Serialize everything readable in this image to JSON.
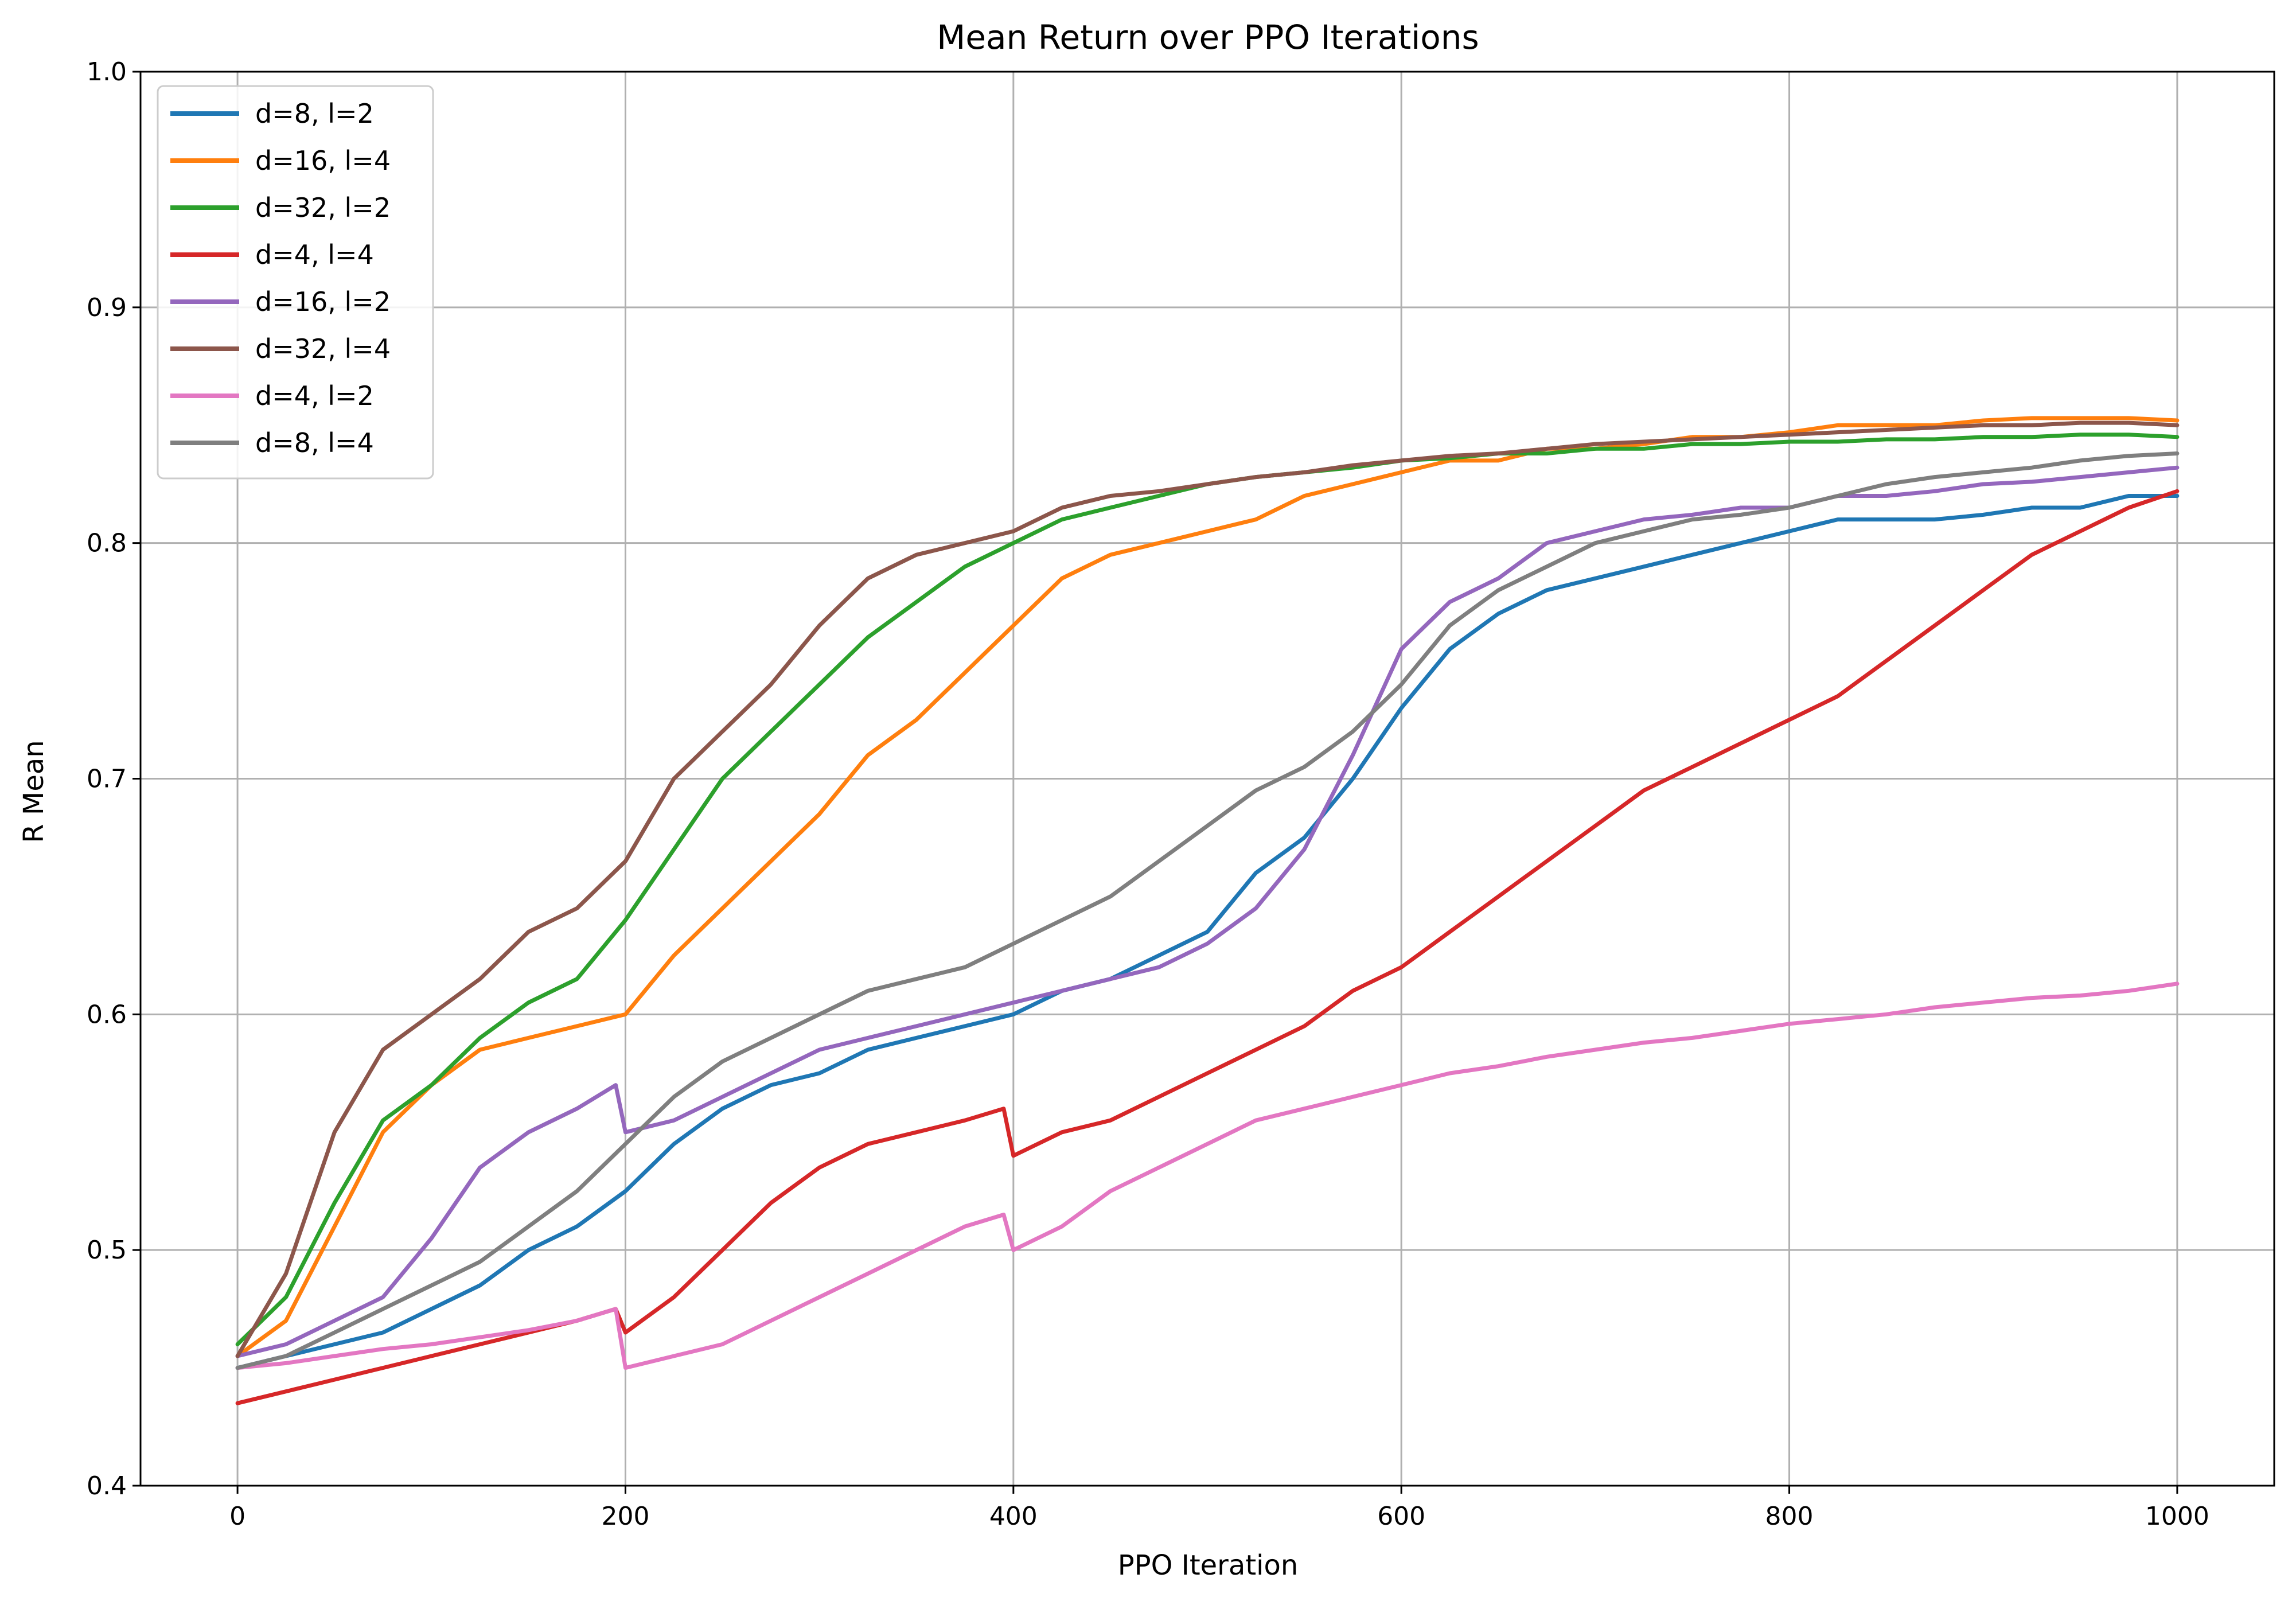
{
  "chart_data": {
    "type": "line",
    "title": "Mean Return over PPO Iterations",
    "xlabel": "PPO Iteration",
    "ylabel": "R Mean",
    "xlim": [
      -50,
      1050
    ],
    "ylim": [
      0.4,
      1.0
    ],
    "xticks": [
      0,
      200,
      400,
      600,
      800,
      1000
    ],
    "yticks": [
      0.4,
      0.5,
      0.6,
      0.7,
      0.8,
      0.9,
      1.0
    ],
    "grid": true,
    "legend_position": "top-left",
    "series": [
      {
        "name": "d=8, l=2",
        "color": "#1f77b4",
        "x": [
          0,
          25,
          50,
          75,
          100,
          125,
          150,
          175,
          200,
          225,
          250,
          275,
          300,
          325,
          350,
          375,
          400,
          425,
          450,
          475,
          500,
          525,
          550,
          575,
          600,
          625,
          650,
          675,
          700,
          725,
          750,
          775,
          800,
          825,
          850,
          875,
          900,
          925,
          950,
          975,
          1000
        ],
        "y": [
          0.45,
          0.455,
          0.46,
          0.465,
          0.475,
          0.485,
          0.5,
          0.51,
          0.525,
          0.545,
          0.56,
          0.57,
          0.575,
          0.585,
          0.59,
          0.595,
          0.6,
          0.61,
          0.615,
          0.625,
          0.635,
          0.66,
          0.675,
          0.7,
          0.73,
          0.755,
          0.77,
          0.78,
          0.785,
          0.79,
          0.795,
          0.8,
          0.805,
          0.81,
          0.81,
          0.81,
          0.812,
          0.815,
          0.815,
          0.82,
          0.82
        ]
      },
      {
        "name": "d=16, l=4",
        "color": "#ff7f0e",
        "x": [
          0,
          25,
          50,
          75,
          100,
          125,
          150,
          175,
          200,
          225,
          250,
          275,
          300,
          325,
          350,
          375,
          400,
          425,
          450,
          475,
          500,
          525,
          550,
          575,
          600,
          625,
          650,
          675,
          700,
          725,
          750,
          775,
          800,
          825,
          850,
          875,
          900,
          925,
          950,
          975,
          1000
        ],
        "y": [
          0.455,
          0.47,
          0.51,
          0.55,
          0.57,
          0.585,
          0.59,
          0.595,
          0.6,
          0.625,
          0.645,
          0.665,
          0.685,
          0.71,
          0.725,
          0.745,
          0.765,
          0.785,
          0.795,
          0.8,
          0.805,
          0.81,
          0.82,
          0.825,
          0.83,
          0.835,
          0.835,
          0.84,
          0.84,
          0.842,
          0.845,
          0.845,
          0.847,
          0.85,
          0.85,
          0.85,
          0.852,
          0.853,
          0.853,
          0.853,
          0.852
        ]
      },
      {
        "name": "d=32, l=2",
        "color": "#2ca02c",
        "x": [
          0,
          25,
          50,
          75,
          100,
          125,
          150,
          175,
          200,
          225,
          250,
          275,
          300,
          325,
          350,
          375,
          400,
          425,
          450,
          475,
          500,
          525,
          550,
          575,
          600,
          625,
          650,
          675,
          700,
          725,
          750,
          775,
          800,
          825,
          850,
          875,
          900,
          925,
          950,
          975,
          1000
        ],
        "y": [
          0.46,
          0.48,
          0.52,
          0.555,
          0.57,
          0.59,
          0.605,
          0.615,
          0.64,
          0.67,
          0.7,
          0.72,
          0.74,
          0.76,
          0.775,
          0.79,
          0.8,
          0.81,
          0.815,
          0.82,
          0.825,
          0.828,
          0.83,
          0.832,
          0.835,
          0.836,
          0.838,
          0.838,
          0.84,
          0.84,
          0.842,
          0.842,
          0.843,
          0.843,
          0.844,
          0.844,
          0.845,
          0.845,
          0.846,
          0.846,
          0.845
        ]
      },
      {
        "name": "d=4, l=4",
        "color": "#d62728",
        "x": [
          0,
          25,
          50,
          75,
          100,
          125,
          150,
          175,
          195,
          200,
          225,
          250,
          275,
          300,
          325,
          350,
          375,
          395,
          400,
          425,
          450,
          475,
          500,
          525,
          550,
          575,
          600,
          625,
          650,
          675,
          700,
          725,
          750,
          775,
          800,
          825,
          850,
          875,
          900,
          925,
          950,
          975,
          1000
        ],
        "y": [
          0.435,
          0.44,
          0.445,
          0.45,
          0.455,
          0.46,
          0.465,
          0.47,
          0.475,
          0.465,
          0.48,
          0.5,
          0.52,
          0.535,
          0.545,
          0.55,
          0.555,
          0.56,
          0.54,
          0.55,
          0.555,
          0.565,
          0.575,
          0.585,
          0.595,
          0.61,
          0.62,
          0.635,
          0.65,
          0.665,
          0.68,
          0.695,
          0.705,
          0.715,
          0.725,
          0.735,
          0.75,
          0.765,
          0.78,
          0.795,
          0.805,
          0.815,
          0.822
        ]
      },
      {
        "name": "d=16, l=2",
        "color": "#9467bd",
        "x": [
          0,
          25,
          50,
          75,
          100,
          125,
          150,
          175,
          195,
          200,
          225,
          250,
          275,
          300,
          325,
          350,
          375,
          400,
          425,
          450,
          475,
          500,
          525,
          550,
          575,
          600,
          625,
          650,
          675,
          700,
          725,
          750,
          775,
          800,
          825,
          850,
          875,
          900,
          925,
          950,
          975,
          1000
        ],
        "y": [
          0.455,
          0.46,
          0.47,
          0.48,
          0.505,
          0.535,
          0.55,
          0.56,
          0.57,
          0.55,
          0.555,
          0.565,
          0.575,
          0.585,
          0.59,
          0.595,
          0.6,
          0.605,
          0.61,
          0.615,
          0.62,
          0.63,
          0.645,
          0.67,
          0.71,
          0.755,
          0.775,
          0.785,
          0.8,
          0.805,
          0.81,
          0.812,
          0.815,
          0.815,
          0.82,
          0.82,
          0.822,
          0.825,
          0.826,
          0.828,
          0.83,
          0.832
        ]
      },
      {
        "name": "d=32, l=4",
        "color": "#8c564b",
        "x": [
          0,
          25,
          50,
          75,
          100,
          125,
          150,
          175,
          200,
          225,
          250,
          275,
          300,
          325,
          350,
          375,
          400,
          425,
          450,
          475,
          500,
          525,
          550,
          575,
          600,
          625,
          650,
          675,
          700,
          725,
          750,
          775,
          800,
          825,
          850,
          875,
          900,
          925,
          950,
          975,
          1000
        ],
        "y": [
          0.455,
          0.49,
          0.55,
          0.585,
          0.6,
          0.615,
          0.635,
          0.645,
          0.665,
          0.7,
          0.72,
          0.74,
          0.765,
          0.785,
          0.795,
          0.8,
          0.805,
          0.815,
          0.82,
          0.822,
          0.825,
          0.828,
          0.83,
          0.833,
          0.835,
          0.837,
          0.838,
          0.84,
          0.842,
          0.843,
          0.844,
          0.845,
          0.846,
          0.847,
          0.848,
          0.849,
          0.85,
          0.85,
          0.851,
          0.851,
          0.85
        ]
      },
      {
        "name": "d=4, l=2",
        "color": "#e377c2",
        "x": [
          0,
          25,
          50,
          75,
          100,
          125,
          150,
          175,
          195,
          200,
          225,
          250,
          275,
          300,
          325,
          350,
          375,
          395,
          400,
          425,
          450,
          475,
          500,
          525,
          550,
          575,
          600,
          625,
          650,
          675,
          700,
          725,
          750,
          775,
          800,
          825,
          850,
          875,
          900,
          925,
          950,
          975,
          1000
        ],
        "y": [
          0.45,
          0.452,
          0.455,
          0.458,
          0.46,
          0.463,
          0.466,
          0.47,
          0.475,
          0.45,
          0.455,
          0.46,
          0.47,
          0.48,
          0.49,
          0.5,
          0.51,
          0.515,
          0.5,
          0.51,
          0.525,
          0.535,
          0.545,
          0.555,
          0.56,
          0.565,
          0.57,
          0.575,
          0.578,
          0.582,
          0.585,
          0.588,
          0.59,
          0.593,
          0.596,
          0.598,
          0.6,
          0.603,
          0.605,
          0.607,
          0.608,
          0.61,
          0.613
        ]
      },
      {
        "name": "d=8, l=4",
        "color": "#7f7f7f",
        "x": [
          0,
          25,
          50,
          75,
          100,
          125,
          150,
          175,
          200,
          225,
          250,
          275,
          300,
          325,
          350,
          375,
          400,
          425,
          450,
          475,
          500,
          525,
          550,
          575,
          600,
          625,
          650,
          675,
          700,
          725,
          750,
          775,
          800,
          825,
          850,
          875,
          900,
          925,
          950,
          975,
          1000
        ],
        "y": [
          0.45,
          0.455,
          0.465,
          0.475,
          0.485,
          0.495,
          0.51,
          0.525,
          0.545,
          0.565,
          0.58,
          0.59,
          0.6,
          0.61,
          0.615,
          0.62,
          0.63,
          0.64,
          0.65,
          0.665,
          0.68,
          0.695,
          0.705,
          0.72,
          0.74,
          0.765,
          0.78,
          0.79,
          0.8,
          0.805,
          0.81,
          0.812,
          0.815,
          0.82,
          0.825,
          0.828,
          0.83,
          0.832,
          0.835,
          0.837,
          0.838
        ]
      }
    ]
  }
}
